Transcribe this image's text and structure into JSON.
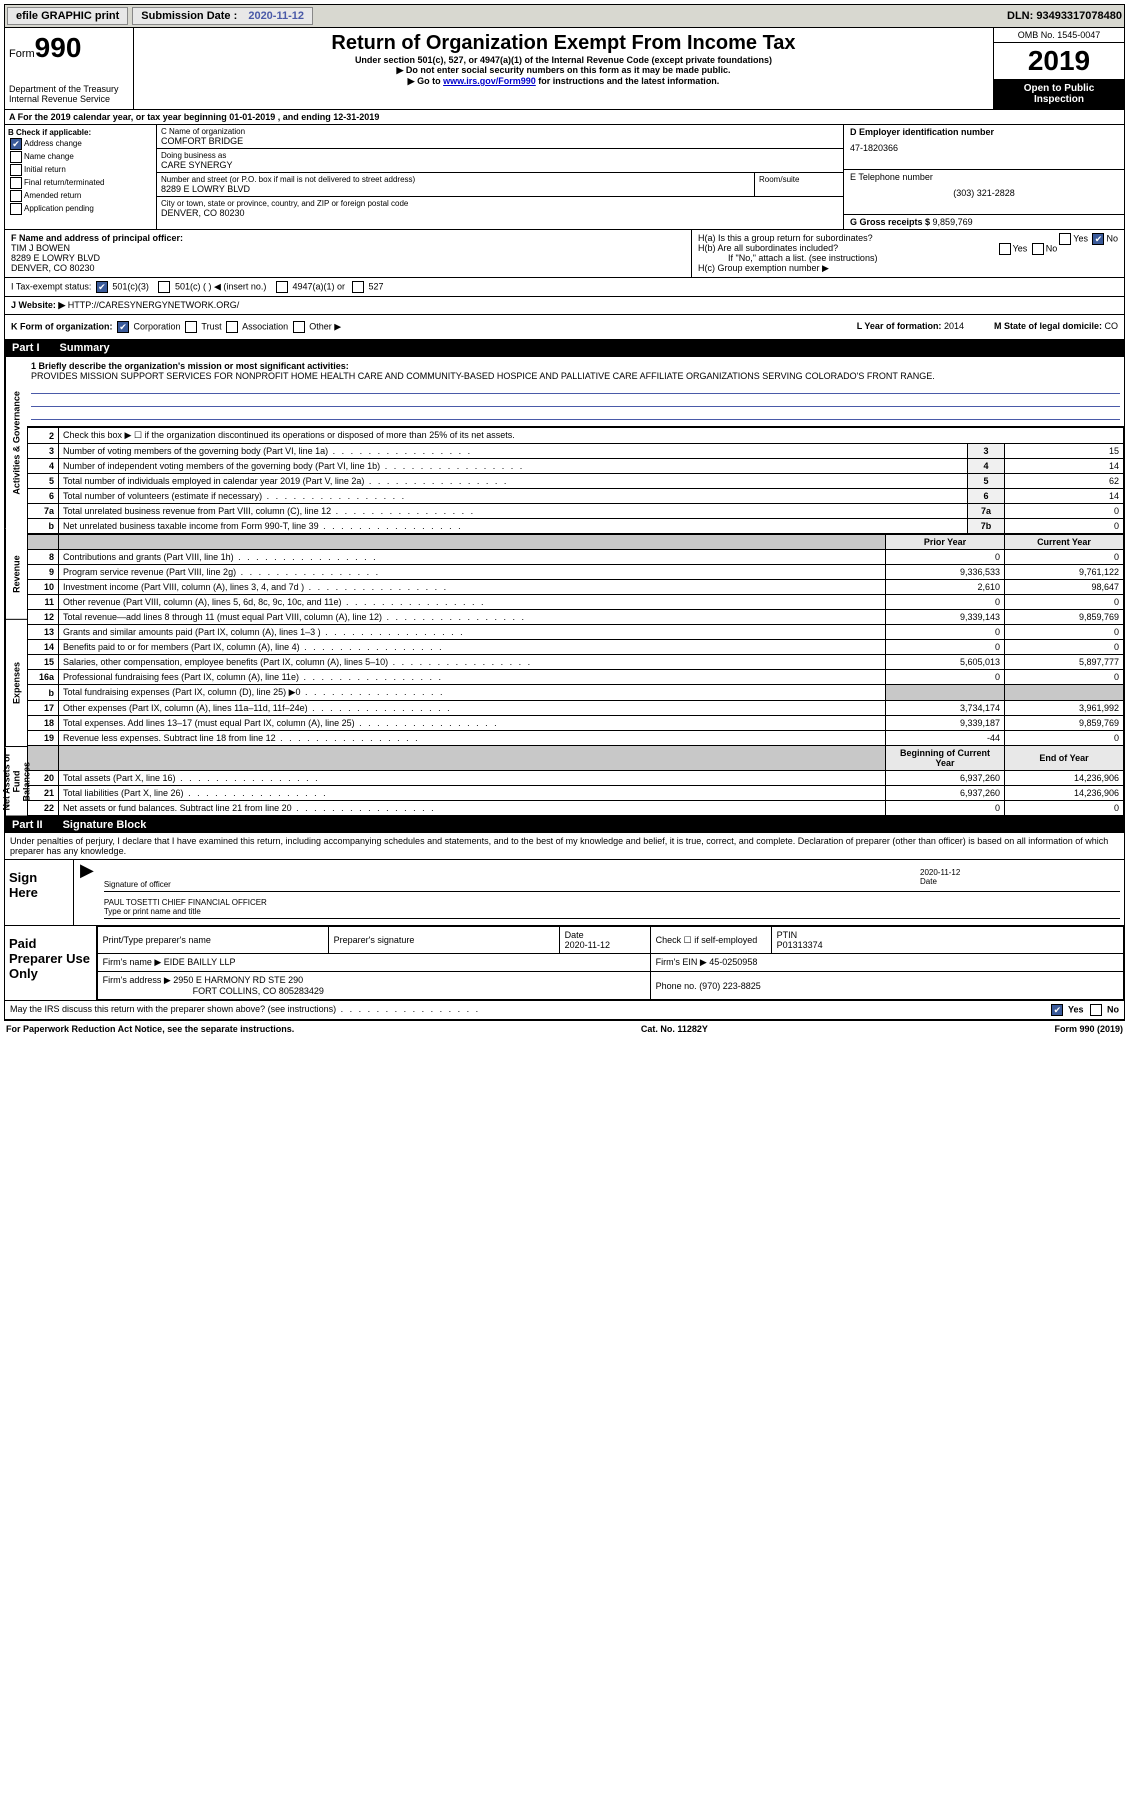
{
  "top": {
    "efile": "efile GRAPHIC print",
    "submission_label": "Submission Date : ",
    "submission_date": "2020-11-12",
    "dln": "DLN: 93493317078480"
  },
  "header": {
    "form_label": "Form",
    "form_num": "990",
    "dept": "Department of the Treasury\nInternal Revenue Service",
    "title": "Return of Organization Exempt From Income Tax",
    "sub1": "Under section 501(c), 527, or 4947(a)(1) of the Internal Revenue Code (except private foundations)",
    "sub2": "▶ Do not enter social security numbers on this form as it may be made public.",
    "sub3_pre": "▶ Go to ",
    "sub3_link": "www.irs.gov/Form990",
    "sub3_post": " for instructions and the latest information.",
    "omb": "OMB No. 1545-0047",
    "year": "2019",
    "open": "Open to Public Inspection"
  },
  "rowA": "A For the 2019 calendar year, or tax year beginning 01-01-2019   , and ending 12-31-2019",
  "b": {
    "label": "B Check if applicable:",
    "addr_change": "Address change",
    "name_change": "Name change",
    "initial": "Initial return",
    "final": "Final return/terminated",
    "amended": "Amended return",
    "app": "Application pending"
  },
  "c": {
    "name_label": "C Name of organization",
    "name": "COMFORT BRIDGE",
    "dba_label": "Doing business as",
    "dba": "CARE SYNERGY",
    "street_label": "Number and street (or P.O. box if mail is not delivered to street address)",
    "room_label": "Room/suite",
    "street": "8289 E LOWRY BLVD",
    "city_label": "City or town, state or province, country, and ZIP or foreign postal code",
    "city": "DENVER, CO  80230"
  },
  "d": {
    "ein_label": "D Employer identification number",
    "ein": "47-1820366",
    "phone_label": "E Telephone number",
    "phone": "(303) 321-2828",
    "gross_label": "G Gross receipts $ ",
    "gross": "9,859,769"
  },
  "f": {
    "label": "F  Name and address of principal officer:",
    "name": "TIM J BOWEN",
    "addr1": "8289 E LOWRY BLVD",
    "addr2": "DENVER, CO  80230"
  },
  "h": {
    "ha": "H(a)  Is this a group return for subordinates?",
    "hb": "H(b)  Are all subordinates included?",
    "hb_note": "If \"No,\" attach a list. (see instructions)",
    "hc": "H(c)  Group exemption number ▶",
    "yes": "Yes",
    "no": "No"
  },
  "i": {
    "label": "I  Tax-exempt status:",
    "o1": "501(c)(3)",
    "o2": "501(c) (  ) ◀ (insert no.)",
    "o3": "4947(a)(1) or",
    "o4": "527"
  },
  "j": {
    "label": "J  Website: ▶",
    "url": "HTTP://CARESYNERGYNETWORK.ORG/"
  },
  "k": {
    "label": "K Form of organization:",
    "corp": "Corporation",
    "trust": "Trust",
    "assoc": "Association",
    "other": "Other ▶",
    "l_label": "L Year of formation: ",
    "l_val": "2014",
    "m_label": "M State of legal domicile: ",
    "m_val": "CO"
  },
  "part1": {
    "header_num": "Part I",
    "header_title": "Summary",
    "line1_label": "1  Briefly describe the organization's mission or most significant activities:",
    "line1_text": "PROVIDES MISSION SUPPORT SERVICES FOR NONPROFIT HOME HEALTH CARE AND COMMUNITY-BASED HOSPICE AND PALLIATIVE CARE AFFILIATE ORGANIZATIONS SERVING COLORADO'S FRONT RANGE.",
    "line2": "Check this box ▶ ☐  if the organization discontinued its operations or disposed of more than 25% of its net assets.",
    "prior_hdr": "Prior Year",
    "current_hdr": "Current Year",
    "begin_hdr": "Beginning of Current Year",
    "end_hdr": "End of Year",
    "side": {
      "ag": "Activities & Governance",
      "rev": "Revenue",
      "exp": "Expenses",
      "na": "Net Assets or Fund Balances"
    },
    "lines_top": [
      {
        "n": "3",
        "t": "Number of voting members of the governing body (Part VI, line 1a)",
        "box": "3",
        "v": "15"
      },
      {
        "n": "4",
        "t": "Number of independent voting members of the governing body (Part VI, line 1b)",
        "box": "4",
        "v": "14"
      },
      {
        "n": "5",
        "t": "Total number of individuals employed in calendar year 2019 (Part V, line 2a)",
        "box": "5",
        "v": "62"
      },
      {
        "n": "6",
        "t": "Total number of volunteers (estimate if necessary)",
        "box": "6",
        "v": "14"
      },
      {
        "n": "7a",
        "t": "Total unrelated business revenue from Part VIII, column (C), line 12",
        "box": "7a",
        "v": "0"
      },
      {
        "n": "b",
        "t": "Net unrelated business taxable income from Form 990-T, line 39",
        "box": "7b",
        "v": "0"
      }
    ],
    "lines_rev": [
      {
        "n": "8",
        "t": "Contributions and grants (Part VIII, line 1h)",
        "py": "0",
        "cy": "0"
      },
      {
        "n": "9",
        "t": "Program service revenue (Part VIII, line 2g)",
        "py": "9,336,533",
        "cy": "9,761,122"
      },
      {
        "n": "10",
        "t": "Investment income (Part VIII, column (A), lines 3, 4, and 7d )",
        "py": "2,610",
        "cy": "98,647"
      },
      {
        "n": "11",
        "t": "Other revenue (Part VIII, column (A), lines 5, 6d, 8c, 9c, 10c, and 11e)",
        "py": "0",
        "cy": "0"
      },
      {
        "n": "12",
        "t": "Total revenue—add lines 8 through 11 (must equal Part VIII, column (A), line 12)",
        "py": "9,339,143",
        "cy": "9,859,769"
      }
    ],
    "lines_exp": [
      {
        "n": "13",
        "t": "Grants and similar amounts paid (Part IX, column (A), lines 1–3 )",
        "py": "0",
        "cy": "0"
      },
      {
        "n": "14",
        "t": "Benefits paid to or for members (Part IX, column (A), line 4)",
        "py": "0",
        "cy": "0"
      },
      {
        "n": "15",
        "t": "Salaries, other compensation, employee benefits (Part IX, column (A), lines 5–10)",
        "py": "5,605,013",
        "cy": "5,897,777"
      },
      {
        "n": "16a",
        "t": "Professional fundraising fees (Part IX, column (A), line 11e)",
        "py": "0",
        "cy": "0"
      },
      {
        "n": "b",
        "t": "Total fundraising expenses (Part IX, column (D), line 25) ▶0",
        "py": "",
        "cy": "",
        "shaded": true
      },
      {
        "n": "17",
        "t": "Other expenses (Part IX, column (A), lines 11a–11d, 11f–24e)",
        "py": "3,734,174",
        "cy": "3,961,992"
      },
      {
        "n": "18",
        "t": "Total expenses. Add lines 13–17 (must equal Part IX, column (A), line 25)",
        "py": "9,339,187",
        "cy": "9,859,769"
      },
      {
        "n": "19",
        "t": "Revenue less expenses. Subtract line 18 from line 12",
        "py": "-44",
        "cy": "0"
      }
    ],
    "lines_na": [
      {
        "n": "20",
        "t": "Total assets (Part X, line 16)",
        "py": "6,937,260",
        "cy": "14,236,906"
      },
      {
        "n": "21",
        "t": "Total liabilities (Part X, line 26)",
        "py": "6,937,260",
        "cy": "14,236,906"
      },
      {
        "n": "22",
        "t": "Net assets or fund balances. Subtract line 21 from line 20",
        "py": "0",
        "cy": "0"
      }
    ]
  },
  "part2": {
    "header_num": "Part II",
    "header_title": "Signature Block",
    "declaration": "Under penalties of perjury, I declare that I have examined this return, including accompanying schedules and statements, and to the best of my knowledge and belief, it is true, correct, and complete. Declaration of preparer (other than officer) is based on all information of which preparer has any knowledge.",
    "sign_here": "Sign Here",
    "sig_officer": "Signature of officer",
    "sig_date_label": "Date",
    "sig_date": "2020-11-12",
    "officer_name": "PAUL TOSETTI CHIEF FINANCIAL OFFICER",
    "type_name": "Type or print name and title",
    "paid_prep": "Paid Preparer Use Only",
    "prep_name_label": "Print/Type preparer's name",
    "prep_sig_label": "Preparer's signature",
    "prep_date_label": "Date",
    "prep_date": "2020-11-12",
    "prep_check": "Check ☐ if self-employed",
    "ptin_label": "PTIN",
    "ptin": "P01313374",
    "firm_name_label": "Firm's name    ▶",
    "firm_name": "EIDE BAILLY LLP",
    "firm_ein_label": "Firm's EIN ▶",
    "firm_ein": "45-0250958",
    "firm_addr_label": "Firm's address ▶",
    "firm_addr1": "2950 E HARMONY RD STE 290",
    "firm_addr2": "FORT COLLINS, CO  805283429",
    "firm_phone_label": "Phone no.",
    "firm_phone": "(970) 223-8825",
    "discuss": "May the IRS discuss this return with the preparer shown above? (see instructions)"
  },
  "footer": {
    "left": "For Paperwork Reduction Act Notice, see the separate instructions.",
    "mid": "Cat. No. 11282Y",
    "right": "Form 990 (2019)"
  }
}
